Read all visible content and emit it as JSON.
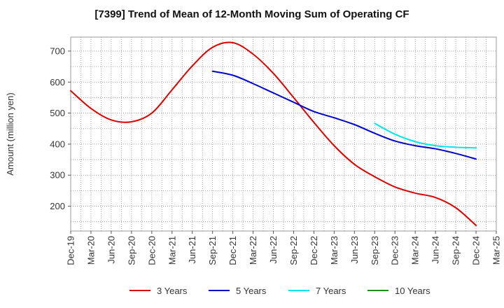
{
  "chart_data": {
    "type": "line",
    "title": "[7399]  Trend of Mean of 12-Month Moving Sum of Operating CF",
    "xlabel": "",
    "ylabel": "Amount (million yen)",
    "ylim": [
      120,
      745
    ],
    "yticks": [
      200,
      300,
      400,
      500,
      600,
      700
    ],
    "grid": true,
    "legend_position": "bottom",
    "categories": [
      "Dec-19",
      "Mar-20",
      "Jun-20",
      "Sep-20",
      "Dec-20",
      "Mar-21",
      "Jun-21",
      "Sep-21",
      "Dec-21",
      "Mar-22",
      "Jun-22",
      "Sep-22",
      "Dec-22",
      "Mar-23",
      "Jun-23",
      "Sep-23",
      "Dec-23",
      "Mar-24",
      "Jun-24",
      "Sep-24",
      "Dec-24",
      "Mar-25"
    ],
    "series": [
      {
        "name": "3 Years",
        "color": "#dd0000",
        "values": [
          572,
          515,
          478,
          472,
          500,
          575,
          652,
          712,
          727,
          690,
          628,
          550,
          470,
          395,
          335,
          295,
          262,
          242,
          228,
          195,
          138,
          null
        ]
      },
      {
        "name": "5 Years",
        "color": "#0000cc",
        "values": [
          null,
          null,
          null,
          null,
          null,
          null,
          null,
          635,
          622,
          595,
          565,
          535,
          505,
          485,
          463,
          435,
          410,
          395,
          385,
          370,
          352,
          null
        ]
      },
      {
        "name": "7 Years",
        "color": "#00e5e5",
        "values": [
          null,
          null,
          null,
          null,
          null,
          null,
          null,
          null,
          null,
          null,
          null,
          null,
          null,
          null,
          null,
          467,
          432,
          408,
          395,
          390,
          388,
          null
        ]
      },
      {
        "name": "10 Years",
        "color": "#228b22",
        "values": [
          null,
          null,
          null,
          null,
          null,
          null,
          null,
          null,
          null,
          null,
          null,
          null,
          null,
          null,
          null,
          null,
          null,
          null,
          null,
          null,
          null,
          null
        ]
      }
    ]
  }
}
